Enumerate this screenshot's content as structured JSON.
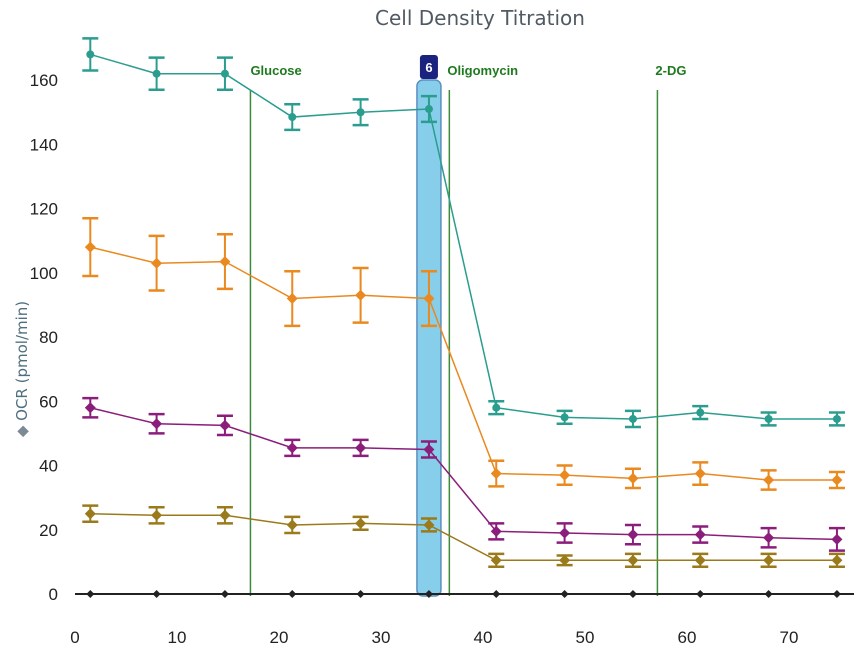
{
  "chart_data": {
    "type": "line",
    "title": "Cell Density Titration",
    "ylabel": "OCR (pmol/min)",
    "ylabel_marker": "◆",
    "xlim": [
      0,
      75
    ],
    "ylim": [
      0,
      170
    ],
    "xticks": [
      0,
      10,
      20,
      30,
      40,
      50,
      60,
      70
    ],
    "yticks": [
      0,
      20,
      40,
      60,
      80,
      100,
      120,
      140,
      160
    ],
    "x": [
      1.5,
      8,
      14.7,
      21.3,
      28,
      34.7,
      41.3,
      48,
      54.7,
      61.3,
      68,
      74.7
    ],
    "series": [
      {
        "color": "#2a9d8f",
        "marker": "circle",
        "values": [
          168,
          162,
          162,
          148.5,
          150,
          151,
          58,
          55,
          54.5,
          56.5,
          54.5,
          54.5
        ],
        "errors": [
          5,
          5,
          5,
          4,
          4,
          4,
          2,
          2,
          2.5,
          2,
          2,
          2
        ]
      },
      {
        "color": "#e9891f",
        "marker": "diamond",
        "values": [
          108,
          103,
          103.5,
          92,
          93,
          92,
          37.5,
          37,
          36,
          37.5,
          35.5,
          35.5
        ],
        "errors": [
          9,
          8.5,
          8.5,
          8.5,
          8.5,
          8.5,
          4,
          3,
          3,
          3.5,
          3,
          2.5
        ]
      },
      {
        "color": "#8b1d7b",
        "marker": "diamond",
        "values": [
          58,
          53,
          52.5,
          45.5,
          45.5,
          45,
          19.5,
          19,
          18.5,
          18.5,
          17.5,
          17
        ],
        "errors": [
          3,
          3,
          3,
          2.5,
          2.5,
          2.5,
          2.5,
          3,
          3,
          2.5,
          3,
          3.5
        ]
      },
      {
        "color": "#9a7a1a",
        "marker": "diamond",
        "values": [
          25,
          24.5,
          24.5,
          21.5,
          22,
          21.5,
          10.5,
          10.5,
          10.5,
          10.5,
          10.5,
          10.5
        ],
        "errors": [
          2.5,
          2.5,
          2.5,
          2.5,
          2,
          2,
          2,
          1.5,
          2,
          2,
          2,
          2
        ]
      },
      {
        "color": "#222222",
        "marker": "diamond",
        "values": [
          0,
          0,
          0,
          0,
          0,
          0,
          0,
          0,
          0,
          0,
          0,
          0
        ],
        "errors": [
          0,
          0,
          0,
          0,
          0,
          0,
          0,
          0,
          0,
          0,
          0,
          0
        ]
      }
    ],
    "injections": [
      {
        "label": "Glucose",
        "x": 17.2
      },
      {
        "label": "Oligomycin",
        "x": 36.7
      },
      {
        "label": "2-DG",
        "x": 57.1
      }
    ],
    "selected_point": {
      "label": "6",
      "x": 34.7
    },
    "colors": {
      "axis": "#222222",
      "injection": "#3c8a3c",
      "injection_label": "#1f7a1f",
      "highlight_fill": "#87ceeb",
      "highlight_stroke": "#5b8fc0",
      "badge": "#1a237e"
    },
    "grid": false
  }
}
